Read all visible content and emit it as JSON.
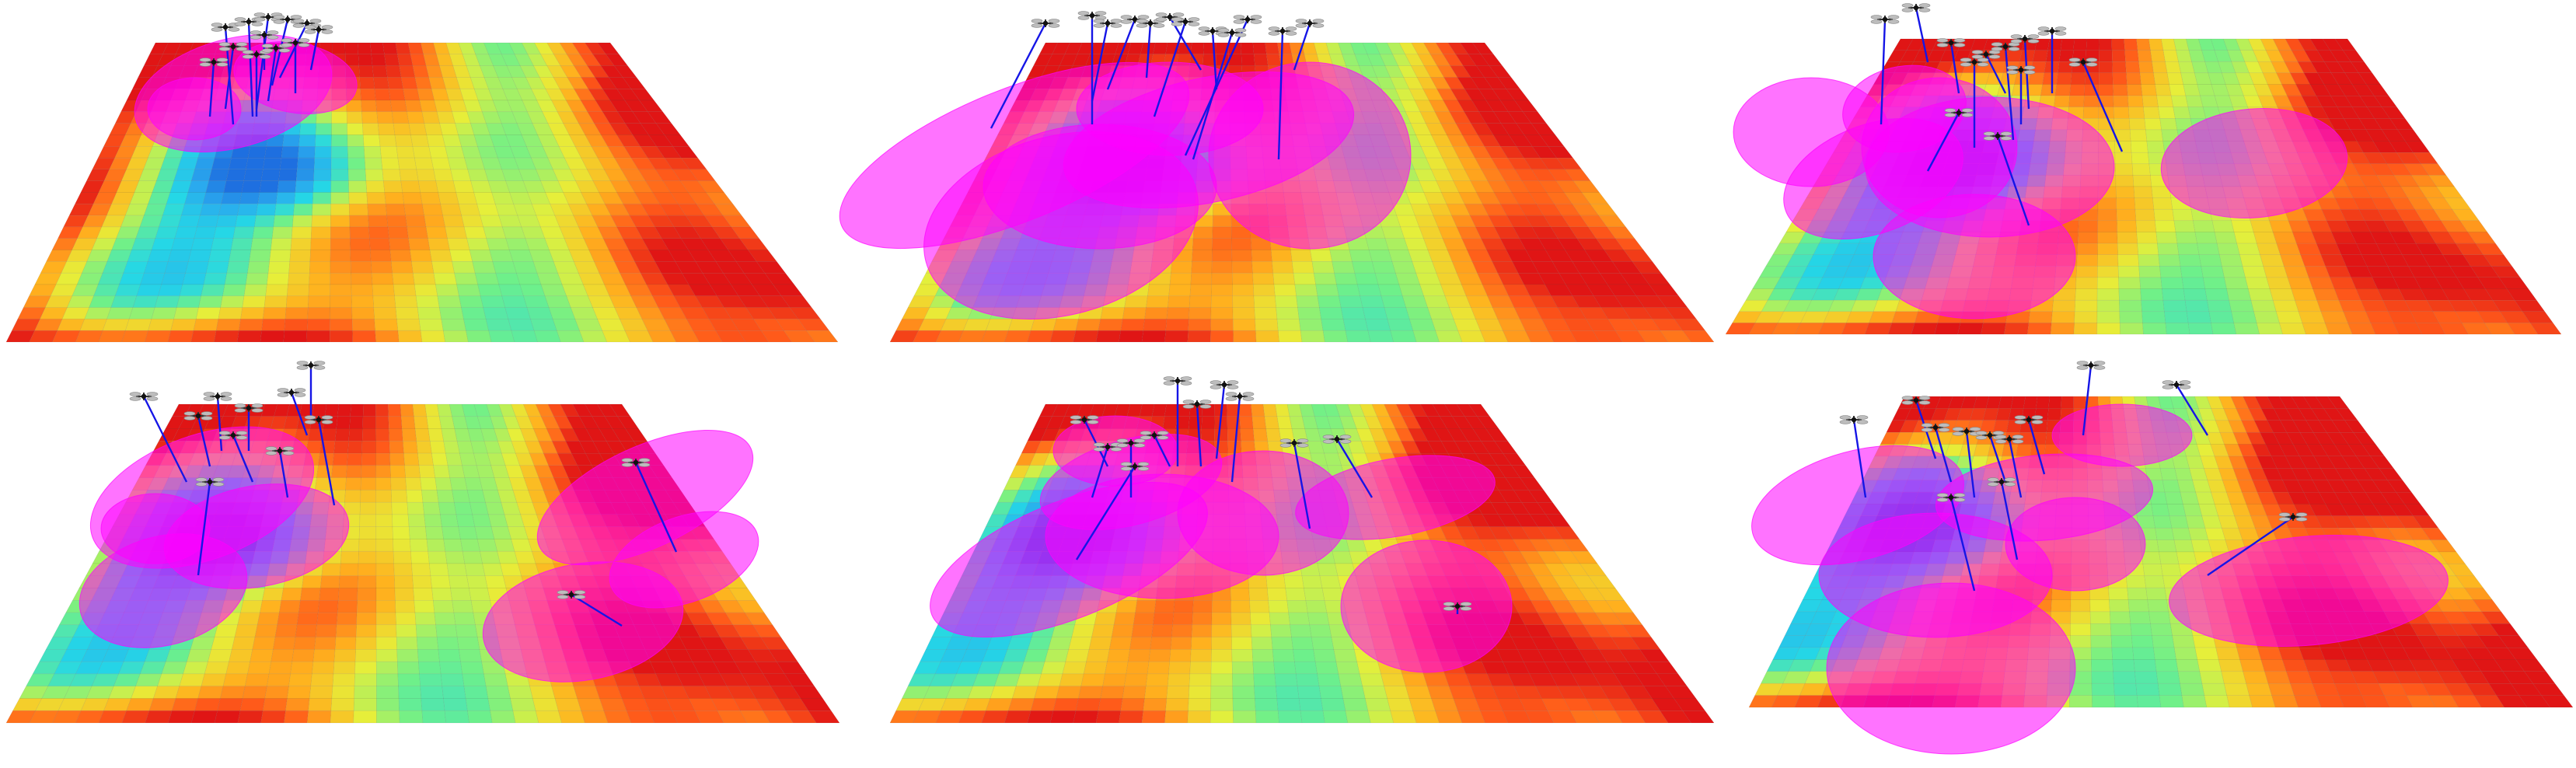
{
  "figure": {
    "panel_count": 6,
    "layout": {
      "rows": 2,
      "cols": 3
    },
    "colormap": [
      "#1e6fe0",
      "#2aa8ee",
      "#25d7e6",
      "#6ef08a",
      "#e6ef3a",
      "#ffb21e",
      "#ff5a1a",
      "#e01515"
    ],
    "plane_grid_color": "#4a4a4a",
    "footprint_color": "#ff00ff",
    "tether_color": "#1515e6",
    "drone_body_color": "#111111",
    "rotor_color": "#bdbdbd"
  },
  "panels": [
    {
      "id": 1,
      "drone_count": 12
    },
    {
      "id": 2,
      "drone_count": 12
    },
    {
      "id": 3,
      "drone_count": 12
    },
    {
      "id": 4,
      "drone_count": 12
    },
    {
      "id": 5,
      "drone_count": 12
    },
    {
      "id": 6,
      "drone_count": 12
    }
  ]
}
